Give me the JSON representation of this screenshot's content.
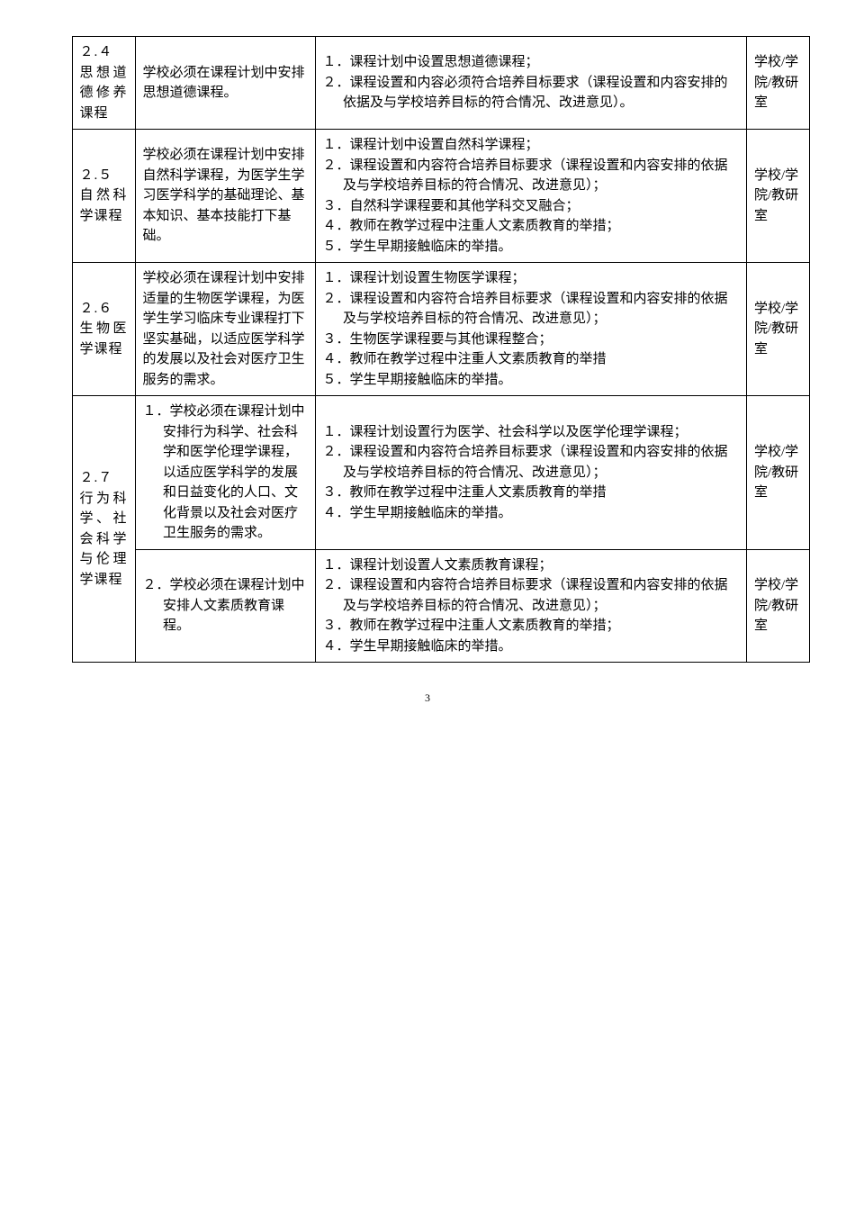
{
  "rows": [
    {
      "id": "２.４\n思想道德修养课程",
      "desc": "学校必须在课程计划中安排思想道德课程。",
      "details": [
        "１．课程计划中设置思想道德课程；",
        "２．课程设置和内容必须符合培养目标要求（课程设置和内容安排的依据及与学校培养目标的符合情况、改进意见）。"
      ],
      "dept": "学校/学院/教研室"
    },
    {
      "id": "２.５\n自然科学课程",
      "desc": "学校必须在课程计划中安排自然科学课程，为医学生学习医学科学的基础理论、基本知识、基本技能打下基础。",
      "details": [
        "１．课程计划中设置自然科学课程；",
        "２．课程设置和内容符合培养目标要求（课程设置和内容安排的依据及与学校培养目标的符合情况、改进意见）；",
        "３．自然科学课程要和其他学科交叉融合；",
        "４．教师在教学过程中注重人文素质教育的举措；",
        "５．学生早期接触临床的举措。"
      ],
      "dept": "学校/学院/教研室"
    },
    {
      "id": "２.６\n生物医学课程",
      "desc": "学校必须在课程计划中安排适量的生物医学课程，为医学生学习临床专业课程打下坚实基础，以适应医学科学的发展以及社会对医疗卫生服务的需求。",
      "details": [
        "１．课程计划设置生物医学课程；",
        "２．课程设置和内容符合培养目标要求（课程设置和内容安排的依据及与学校培养目标的符合情况、改进意见）；",
        "３．生物医学课程要与其他课程整合；",
        "４．教师在教学过程中注重人文素质教育的举措",
        "５．学生早期接触临床的举措。"
      ],
      "dept": "学校/学院/教研室"
    },
    {
      "id_merged": "２.７\n行为科学、社会科学与伦理学课程",
      "desc": "１．学校必须在课程计划中安排行为科学、社会科学和医学伦理学课程，以适应医学科学的发展和日益变化的人口、文化背景以及社会对医疗卫生服务的需求。",
      "details": [
        "１．课程计划设置行为医学、社会科学以及医学伦理学课程；",
        "２．课程设置和内容符合培养目标要求（课程设置和内容安排的依据及与学校培养目标的符合情况、改进意见）；",
        "３．教师在教学过程中注重人文素质教育的举措",
        "４．学生早期接触临床的举措。"
      ],
      "dept": "学校/学院/教研室"
    },
    {
      "desc": "２．学校必须在课程计划中安排人文素质教育课程。",
      "details": [
        "１．课程计划设置人文素质教育课程；",
        "２．课程设置和内容符合培养目标要求（课程设置和内容安排的依据及与学校培养目标的符合情况、改进意见）；",
        "３．教师在教学过程中注重人文素质教育的举措；",
        "４．学生早期接触临床的举措。"
      ],
      "dept": "学校/学院/教研室"
    }
  ],
  "pageNumber": "3"
}
